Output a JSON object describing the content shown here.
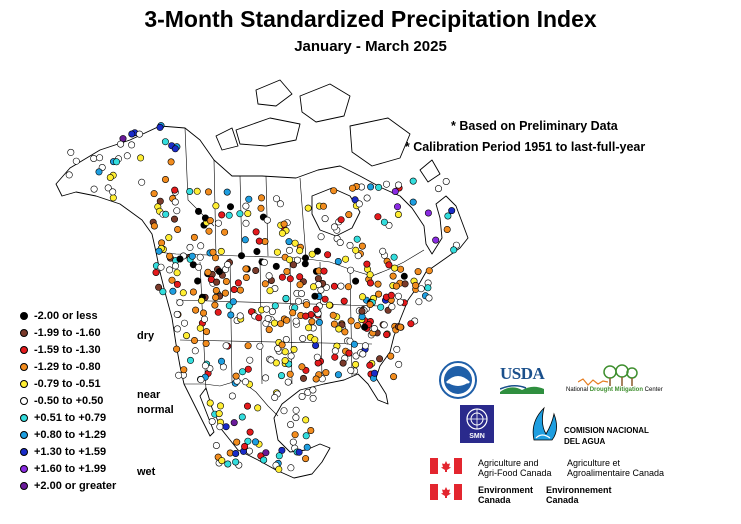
{
  "header": {
    "title": "3-Month Standardized Precipitation Index",
    "subtitle": "January - March 2025"
  },
  "notes": {
    "preliminary": "* Based on Preliminary Data",
    "calibration": "** Calibration Period 1951 to last-full-year"
  },
  "legend": {
    "items": [
      {
        "label": "-2.00 or less",
        "color": "#000000"
      },
      {
        "label": "-1.99 to -1.60",
        "color": "#7a3a2a"
      },
      {
        "label": "-1.59 to -1.30",
        "color": "#e41a1c"
      },
      {
        "label": "-1.29 to -0.80",
        "color": "#f28c1e"
      },
      {
        "label": "-0.79 to -0.51",
        "color": "#ffee33"
      },
      {
        "label": "-0.50 to +0.50",
        "color": "#ffffff"
      },
      {
        "label": "+0.51 to +0.79",
        "color": "#33dddd"
      },
      {
        "label": "+0.80 to +1.29",
        "color": "#1e9ee0"
      },
      {
        "label": "+1.30 to +1.59",
        "color": "#1a2cc8"
      },
      {
        "label": "+1.60 to +1.99",
        "color": "#8a2be2"
      },
      {
        "label": "+2.00 or greater",
        "color": "#6a1b9a"
      }
    ],
    "categories": {
      "dry": "dry",
      "near": "near",
      "normal": "normal",
      "wet": "wet"
    }
  },
  "logos": {
    "usda": "USDA",
    "ndmc_prefix": "National ",
    "ndmc_mid": "Drought Mitigation",
    "ndmc_suffix": " Center",
    "conagua_line1": "COMISION NACIONAL",
    "conagua_line2": "DEL AGUA",
    "smn": "SMN",
    "aafc_en_line1": "Agriculture and",
    "aafc_en_line2": "Agri-Food Canada",
    "aafc_fr_line1": "Agriculture et",
    "aafc_fr_line2": "Agroalimentaire Canada",
    "ec_en_line1": "Environment",
    "ec_en_line2": "Canada",
    "ec_fr_line1": "Environnement",
    "ec_fr_line2": "Canada"
  },
  "colors": {
    "noaa_blue": "#1f5fa8",
    "usda_blue": "#1a4f8b",
    "usda_green": "#2f8f3f",
    "canada_red": "#e3262f",
    "ndmc_green": "#3f8f2f"
  }
}
